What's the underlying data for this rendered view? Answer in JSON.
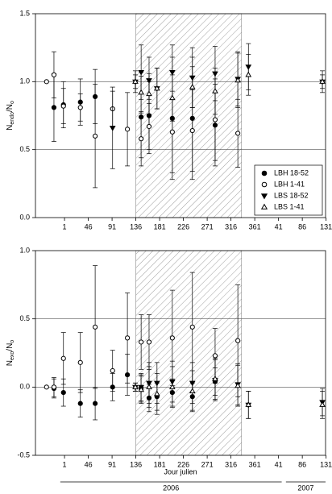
{
  "chart_data": [
    {
      "type": "scatter",
      "ylabel": [
        "N",
        "endo",
        "/N",
        "o"
      ],
      "x": [
        -33,
        -19,
        -1,
        31,
        59,
        92,
        120,
        135,
        146,
        161,
        176,
        205,
        243,
        286,
        329,
        349,
        489
      ],
      "xlim": [
        -54,
        495
      ],
      "xticks": [
        1,
        46,
        91,
        136,
        181,
        226,
        271,
        316,
        361,
        {
          "value": 406,
          "label": "41"
        },
        {
          "value": 451,
          "label": "86"
        },
        {
          "value": 496,
          "label": "131"
        }
      ],
      "ylim": [
        0,
        1.5
      ],
      "yticks": [
        {
          "value": 0,
          "label": "0.0"
        },
        {
          "value": 0.5,
          "label": "0.5"
        },
        {
          "value": 1,
          "label": "1.0"
        },
        {
          "value": 1.5,
          "label": "1.5"
        }
      ],
      "hlines": [
        0.5,
        1.0
      ],
      "highlight": [
        136,
        336
      ],
      "legend": "lower right",
      "series": [
        {
          "name": "LBH 18-52",
          "marker": "circle",
          "filled": true,
          "color": "#000000",
          "values": [
            null,
            0.81,
            0.83,
            0.85,
            0.89,
            null,
            null,
            null,
            0.74,
            0.75,
            null,
            0.73,
            0.73,
            0.68,
            null,
            null,
            null
          ],
          "errors": [
            null,
            0.25,
            0.17,
            0.17,
            0.2,
            null,
            null,
            null,
            0.3,
            0.25,
            null,
            0.45,
            0.45,
            0.3,
            null,
            null,
            null
          ]
        },
        {
          "name": "LBH 1-41",
          "marker": "circle",
          "filled": false,
          "color": "#000000",
          "values": [
            1.0,
            1.05,
            0.82,
            0.81,
            0.6,
            0.8,
            0.65,
            null,
            0.58,
            0.67,
            null,
            0.63,
            0.64,
            0.72,
            0.62,
            null,
            null
          ],
          "errors": [
            null,
            0.17,
            0.13,
            0.1,
            0.38,
            0.13,
            0.27,
            null,
            0.2,
            0.2,
            null,
            0.3,
            0.3,
            0.3,
            0.25,
            null,
            null
          ]
        },
        {
          "name": "LBS 18-52",
          "marker": "triangle-down",
          "filled": true,
          "color": "#000000",
          "values": [
            null,
            null,
            null,
            null,
            null,
            0.66,
            null,
            1.0,
            1.07,
            1.01,
            0.95,
            1.07,
            1.03,
            1.06,
            1.02,
            1.11,
            1.0
          ],
          "errors": [
            null,
            null,
            null,
            null,
            null,
            0.3,
            null,
            0.08,
            0.2,
            0.17,
            0.15,
            0.2,
            0.22,
            0.2,
            0.2,
            0.17,
            0.08
          ]
        },
        {
          "name": "LBS 1-41",
          "marker": "triangle-up",
          "filled": false,
          "color": "#000000",
          "values": [
            null,
            null,
            null,
            null,
            null,
            null,
            null,
            1.0,
            0.92,
            0.91,
            0.95,
            0.88,
            0.96,
            0.93,
            1.01,
            1.05,
            1.0
          ],
          "errors": [
            null,
            null,
            null,
            null,
            null,
            null,
            null,
            0.05,
            0.15,
            0.15,
            0.15,
            0.17,
            0.15,
            0.17,
            0.2,
            0.15,
            0.05
          ]
        }
      ]
    },
    {
      "type": "scatter",
      "ylabel": [
        "N",
        "exo",
        "/N",
        "o"
      ],
      "xlabel": "Jour julien",
      "x": [
        -33,
        -19,
        -1,
        31,
        59,
        92,
        120,
        135,
        146,
        161,
        176,
        205,
        243,
        286,
        329,
        349,
        489
      ],
      "xlim": [
        -54,
        495
      ],
      "xticks": [
        1,
        46,
        91,
        136,
        181,
        226,
        271,
        316,
        361,
        {
          "value": 406,
          "label": "41"
        },
        {
          "value": 451,
          "label": "86"
        },
        {
          "value": 496,
          "label": "131"
        }
      ],
      "ylim": [
        -0.5,
        1.0
      ],
      "yticks": [
        {
          "value": -0.5,
          "label": "-0.5"
        },
        {
          "value": 0,
          "label": "0.0"
        },
        {
          "value": 0.5,
          "label": "0.5"
        },
        {
          "value": 1,
          "label": "1.0"
        }
      ],
      "hlines": [
        0.0,
        0.5
      ],
      "highlight": [
        136,
        336
      ],
      "periods": [
        {
          "label": "2006",
          "range": [
            -7,
            412
          ]
        },
        {
          "label": "2007",
          "range": [
            420,
            495
          ]
        }
      ],
      "series": [
        {
          "marker": "circle",
          "filled": true,
          "color": "#000000",
          "values": [
            null,
            -0.01,
            -0.04,
            -0.12,
            -0.12,
            0.0,
            0.09,
            null,
            -0.01,
            -0.08,
            -0.07,
            -0.04,
            -0.07,
            0.04,
            null,
            null,
            null
          ],
          "errors": [
            null,
            0.07,
            0.1,
            0.1,
            0.12,
            0.1,
            0.15,
            null,
            0.1,
            0.1,
            0.1,
            0.1,
            0.1,
            0.1,
            null,
            null,
            null
          ]
        },
        {
          "marker": "circle",
          "filled": false,
          "color": "#000000",
          "values": [
            0.0,
            0.0,
            0.21,
            0.18,
            0.44,
            0.12,
            0.36,
            null,
            0.33,
            0.33,
            null,
            0.36,
            0.44,
            0.23,
            0.34,
            null,
            null
          ],
          "errors": [
            null,
            0.07,
            0.19,
            0.22,
            0.45,
            0.15,
            0.33,
            null,
            0.2,
            0.2,
            null,
            0.35,
            0.4,
            0.2,
            0.41,
            null,
            null
          ]
        },
        {
          "marker": "triangle-down",
          "filled": true,
          "color": "#000000",
          "values": [
            null,
            null,
            null,
            null,
            null,
            null,
            null,
            0.0,
            0.0,
            0.03,
            0.03,
            0.04,
            0.03,
            0.05,
            0.02,
            -0.13,
            -0.11
          ],
          "errors": [
            null,
            null,
            null,
            null,
            null,
            null,
            null,
            0.03,
            0.1,
            0.15,
            0.15,
            0.15,
            0.15,
            0.15,
            0.15,
            0.1,
            0.1
          ]
        },
        {
          "marker": "triangle-up",
          "filled": false,
          "color": "#000000",
          "values": [
            null,
            null,
            null,
            null,
            null,
            null,
            null,
            0.0,
            -0.02,
            0.0,
            -0.05,
            0.0,
            -0.03,
            0.06,
            0.01,
            -0.13,
            -0.13
          ],
          "errors": [
            null,
            null,
            null,
            null,
            null,
            null,
            null,
            0.03,
            0.1,
            0.15,
            0.15,
            0.15,
            0.15,
            0.15,
            0.15,
            0.1,
            0.1
          ]
        }
      ]
    }
  ]
}
